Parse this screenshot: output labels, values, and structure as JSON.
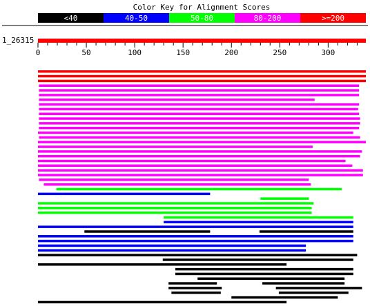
{
  "chart_data": {
    "type": "alignment",
    "title": "Color Key for Alignment Scores",
    "color_key": [
      {
        "label": "<40",
        "color": "#000000"
      },
      {
        "label": "40-50",
        "color": "#0000ff"
      },
      {
        "label": "50-80",
        "color": "#00ff00"
      },
      {
        "label": "80-200",
        "color": "#ff00ff"
      },
      {
        "label": ">=200",
        "color": "#ff0000"
      }
    ],
    "query": {
      "label": "1_26315",
      "key": 4,
      "range": [
        0,
        339
      ]
    },
    "xlim": [
      0,
      339
    ],
    "xticks": [
      0,
      50,
      100,
      150,
      200,
      250,
      300
    ],
    "xminorticks": [
      10,
      20,
      30,
      40,
      60,
      70,
      80,
      90,
      110,
      120,
      130,
      140,
      160,
      170,
      180,
      190,
      210,
      220,
      230,
      240,
      260,
      270,
      280,
      290,
      310,
      320,
      330
    ],
    "rows": [
      {
        "key": 4,
        "segments": [
          [
            0,
            339
          ]
        ]
      },
      {
        "key": 4,
        "segments": [
          [
            0,
            339
          ]
        ]
      },
      {
        "key": 4,
        "segments": [
          [
            0,
            339
          ]
        ]
      },
      {
        "key": 3,
        "segments": [
          [
            1,
            332
          ]
        ]
      },
      {
        "key": 3,
        "segments": [
          [
            1,
            332
          ]
        ]
      },
      {
        "key": 3,
        "segments": [
          [
            1,
            332
          ]
        ]
      },
      {
        "key": 3,
        "segments": [
          [
            1,
            286
          ]
        ]
      },
      {
        "key": 3,
        "segments": [
          [
            1,
            332
          ]
        ]
      },
      {
        "key": 3,
        "segments": [
          [
            1,
            331
          ]
        ]
      },
      {
        "key": 3,
        "segments": [
          [
            1,
            332
          ]
        ]
      },
      {
        "key": 3,
        "segments": [
          [
            1,
            333
          ]
        ]
      },
      {
        "key": 3,
        "segments": [
          [
            1,
            333
          ]
        ]
      },
      {
        "key": 3,
        "segments": [
          [
            1,
            332
          ]
        ]
      },
      {
        "key": 3,
        "segments": [
          [
            0,
            326
          ]
        ]
      },
      {
        "key": 3,
        "segments": [
          [
            1,
            333
          ]
        ]
      },
      {
        "key": 3,
        "segments": [
          [
            0,
            339
          ]
        ]
      },
      {
        "key": 3,
        "segments": [
          [
            0,
            284
          ]
        ]
      },
      {
        "key": 3,
        "segments": [
          [
            0,
            335
          ]
        ]
      },
      {
        "key": 3,
        "segments": [
          [
            0,
            333
          ]
        ]
      },
      {
        "key": 3,
        "segments": [
          [
            0,
            318
          ]
        ]
      },
      {
        "key": 3,
        "segments": [
          [
            0,
            325
          ]
        ]
      },
      {
        "key": 3,
        "segments": [
          [
            0,
            336
          ]
        ]
      },
      {
        "key": 3,
        "segments": [
          [
            0,
            336
          ]
        ]
      },
      {
        "key": 3,
        "segments": [
          [
            1,
            280
          ]
        ]
      },
      {
        "key": 3,
        "segments": [
          [
            6,
            282
          ]
        ]
      },
      {
        "key": 2,
        "segments": [
          [
            19,
            314
          ]
        ]
      },
      {
        "key": 1,
        "segments": [
          [
            0,
            178
          ]
        ]
      },
      {
        "key": 2,
        "segments": [
          [
            230,
            280
          ]
        ]
      },
      {
        "key": 2,
        "segments": [
          [
            0,
            285
          ]
        ]
      },
      {
        "key": 2,
        "segments": [
          [
            0,
            283
          ]
        ]
      },
      {
        "key": 2,
        "segments": [
          [
            0,
            283
          ]
        ]
      },
      {
        "key": 2,
        "segments": [
          [
            130,
            326
          ]
        ]
      },
      {
        "key": 1,
        "segments": [
          [
            130,
            326
          ]
        ]
      },
      {
        "key": 1,
        "segments": [
          [
            0,
            326
          ]
        ]
      },
      {
        "key": 0,
        "segments": [
          [
            48,
            178
          ],
          [
            229,
            326
          ]
        ]
      },
      {
        "key": 1,
        "segments": [
          [
            0,
            326
          ]
        ]
      },
      {
        "key": 1,
        "segments": [
          [
            0,
            326
          ]
        ]
      },
      {
        "key": 1,
        "segments": [
          [
            0,
            277
          ]
        ]
      },
      {
        "key": 1,
        "segments": [
          [
            0,
            277
          ]
        ]
      },
      {
        "key": 0,
        "segments": [
          [
            0,
            330
          ]
        ]
      },
      {
        "key": 0,
        "segments": [
          [
            129,
            326
          ]
        ]
      },
      {
        "key": 0,
        "segments": [
          [
            0,
            257
          ]
        ]
      },
      {
        "key": 0,
        "segments": [
          [
            142,
            326
          ]
        ]
      },
      {
        "key": 0,
        "segments": [
          [
            142,
            326
          ]
        ]
      },
      {
        "key": 0,
        "segments": [
          [
            165,
            317
          ]
        ]
      },
      {
        "key": 0,
        "segments": [
          [
            135,
            185
          ],
          [
            232,
            317
          ]
        ]
      },
      {
        "key": 0,
        "segments": [
          [
            135,
            190
          ],
          [
            246,
            335
          ]
        ]
      },
      {
        "key": 0,
        "segments": [
          [
            138,
            189
          ],
          [
            249,
            321
          ]
        ]
      },
      {
        "key": 0,
        "segments": [
          [
            200,
            310
          ]
        ]
      },
      {
        "key": 0,
        "segments": [
          [
            0,
            257
          ]
        ]
      }
    ]
  }
}
